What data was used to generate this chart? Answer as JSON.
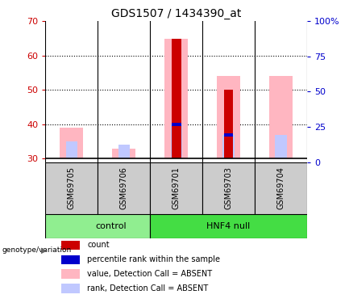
{
  "title": "GDS1507 / 1434390_at",
  "samples": [
    "GSM69705",
    "GSM69706",
    "GSM69701",
    "GSM69703",
    "GSM69704"
  ],
  "ylim_left": [
    29,
    70
  ],
  "ylim_right": [
    0,
    100
  ],
  "yticks_left": [
    30,
    40,
    50,
    60,
    70
  ],
  "yticks_right": [
    0,
    25,
    50,
    75,
    100
  ],
  "ytick_labels_right": [
    "0",
    "25",
    "50",
    "75",
    "100%"
  ],
  "bar_bottom": 30,
  "pink_bar_top": [
    39,
    33,
    65,
    54,
    54
  ],
  "pink_rank_top": [
    35,
    34,
    40,
    37,
    37
  ],
  "red_bar_top": [
    null,
    null,
    65,
    50,
    null
  ],
  "red_bar_bottom": [
    null,
    null,
    30,
    30,
    null
  ],
  "blue_bar_top": [
    null,
    null,
    40.5,
    37.5,
    null
  ],
  "blue_bar_bottom": [
    null,
    null,
    39.5,
    36.5,
    null
  ],
  "pink_value_color": "#FFB6C1",
  "pink_rank_color": "#C0C8FF",
  "red_color": "#CC0000",
  "blue_color": "#0000CC",
  "left_tick_color": "#CC0000",
  "right_tick_color": "#0000CC",
  "control_group_color": "#90EE90",
  "hnf4_group_color": "#44DD44",
  "sample_box_color": "#CCCCCC",
  "legend_items": [
    {
      "label": "count",
      "color": "#CC0000"
    },
    {
      "label": "percentile rank within the sample",
      "color": "#0000CC"
    },
    {
      "label": "value, Detection Call = ABSENT",
      "color": "#FFB6C1"
    },
    {
      "label": "rank, Detection Call = ABSENT",
      "color": "#C0C8FF"
    }
  ],
  "n_control": 2,
  "n_hnf4": 3
}
